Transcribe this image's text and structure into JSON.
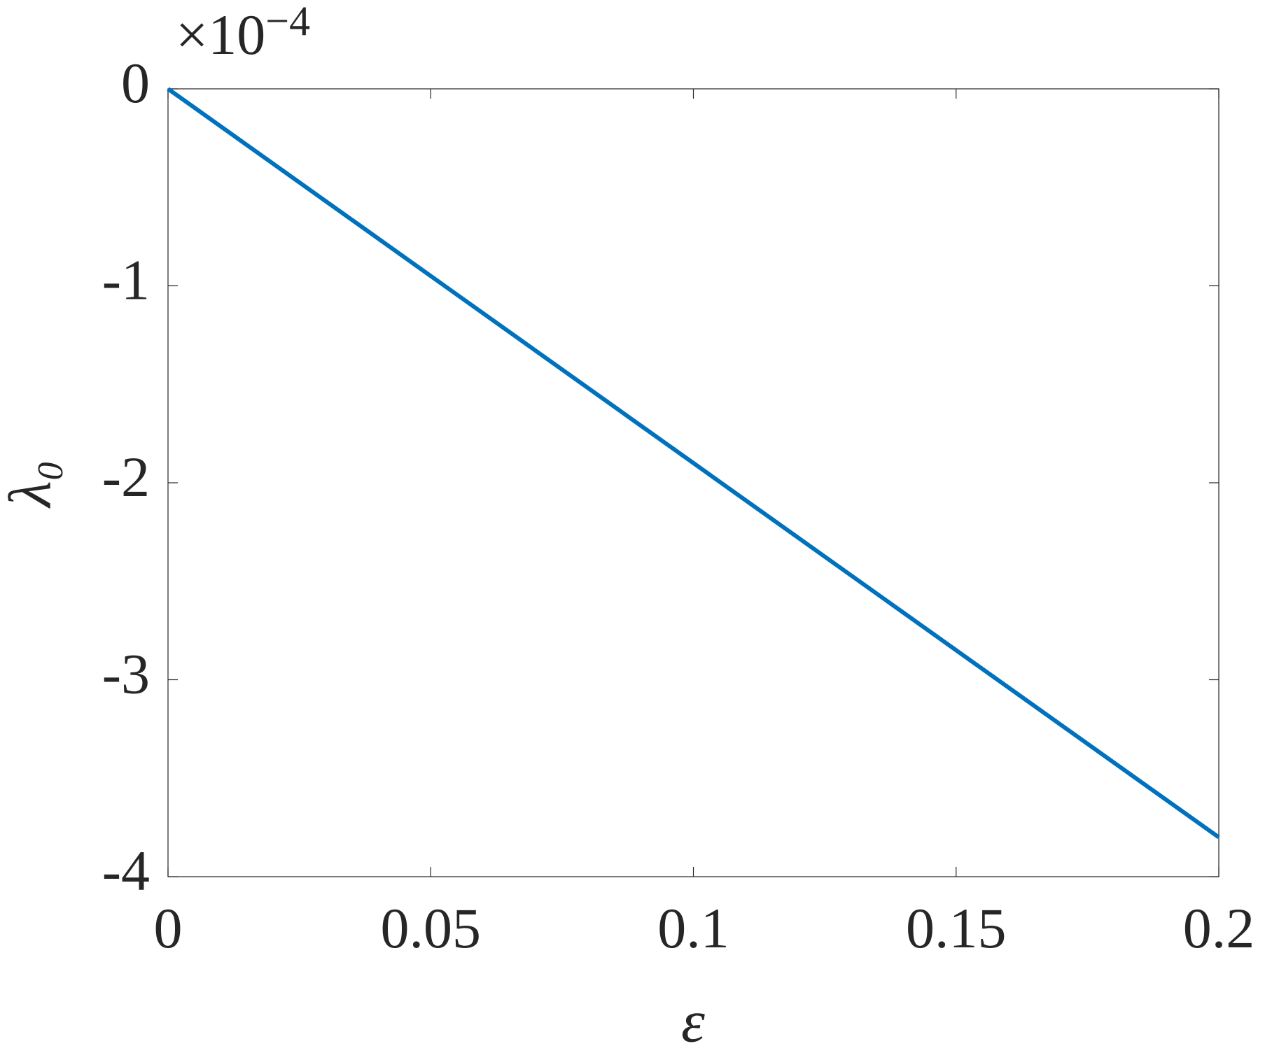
{
  "chart_data": {
    "type": "line",
    "x": [
      0,
      0.2
    ],
    "series": [
      {
        "name": "λ₀",
        "color": "#0072BD",
        "values": [
          0,
          -3.8
        ]
      }
    ],
    "xlim": [
      0,
      0.2
    ],
    "xticks": [
      0,
      0.05,
      0.1,
      0.15,
      0.2
    ],
    "ylim": [
      -4,
      0
    ],
    "yticks": [
      0,
      -1,
      -2,
      -3,
      -4
    ],
    "xlabel": "ε",
    "ylabel": "λ₀",
    "multiplier": {
      "base": "×10",
      "exponent": "−4"
    },
    "grid": false
  }
}
